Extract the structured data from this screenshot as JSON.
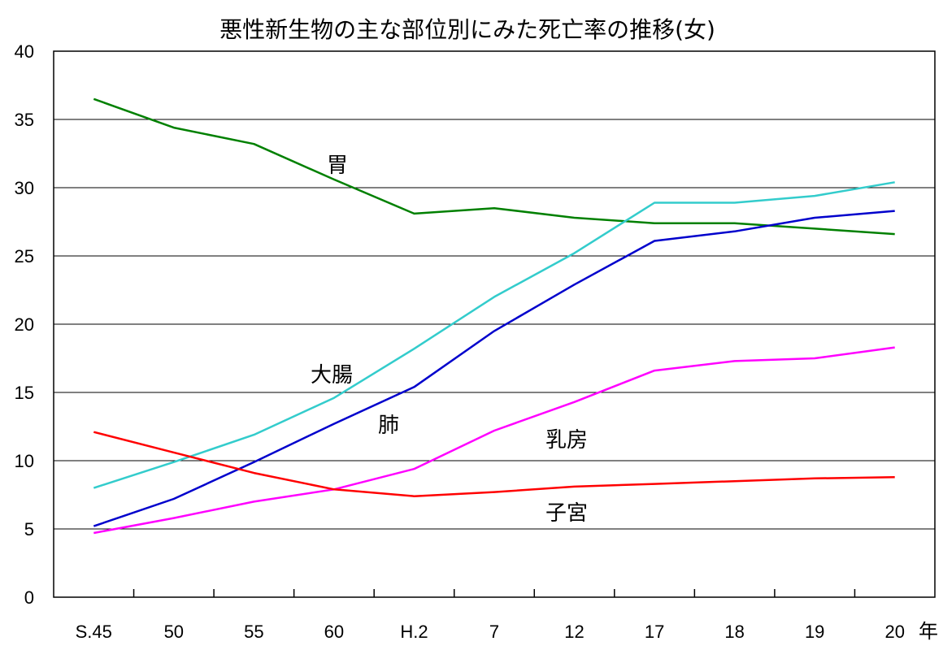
{
  "chart_data": {
    "type": "line",
    "title": "悪性新生物の主な部位別にみた死亡率の推移(女)",
    "x_unit": "年",
    "categories": [
      "S.45",
      "50",
      "55",
      "60",
      "H.2",
      "7",
      "12",
      "17",
      "18",
      "19",
      "20"
    ],
    "ylim": [
      0,
      40
    ],
    "yticks": [
      0,
      5,
      10,
      15,
      20,
      25,
      30,
      35,
      40
    ],
    "grid": true,
    "series": [
      {
        "name": "胃",
        "color": "#008000",
        "values": [
          36.5,
          34.4,
          33.2,
          30.6,
          28.1,
          28.5,
          27.8,
          27.4,
          27.4,
          27.0,
          26.6
        ]
      },
      {
        "name": "大腸",
        "color": "#33CCCC",
        "values": [
          8.0,
          9.9,
          11.9,
          14.6,
          18.2,
          22.0,
          25.2,
          28.9,
          28.9,
          29.4,
          30.4
        ]
      },
      {
        "name": "肺",
        "color": "#0000CC",
        "values": [
          5.2,
          7.2,
          9.9,
          12.7,
          15.4,
          19.5,
          22.9,
          26.1,
          26.8,
          27.8,
          28.3
        ]
      },
      {
        "name": "乳房",
        "color": "#FF00FF",
        "values": [
          4.7,
          5.8,
          7.0,
          7.9,
          9.4,
          12.2,
          14.3,
          16.6,
          17.3,
          17.5,
          18.3
        ]
      },
      {
        "name": "子宮",
        "color": "#FF0000",
        "values": [
          12.1,
          10.6,
          9.1,
          7.9,
          7.4,
          7.7,
          8.1,
          8.3,
          8.5,
          8.7,
          8.8
        ]
      }
    ]
  }
}
